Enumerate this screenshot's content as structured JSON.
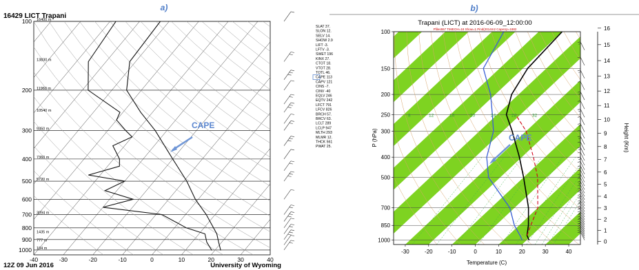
{
  "panel_a": {
    "label": "a)",
    "station_title": "16429 LICT Trapani",
    "footer_left": "12Z 09 Jun 2016",
    "footer_right": "University of Wyoming",
    "annotation": "CAPE",
    "height_labels": [
      {
        "p": 100,
        "text": "16400 m"
      },
      {
        "p": 150,
        "text": "13830 m"
      },
      {
        "p": 200,
        "text": "11960 m"
      },
      {
        "p": 250,
        "text": "10540 m"
      },
      {
        "p": 300,
        "text": "9350 m"
      },
      {
        "p": 400,
        "text": "7360 m"
      },
      {
        "p": 500,
        "text": "5720 m"
      },
      {
        "p": 700,
        "text": "3094 m"
      },
      {
        "p": 850,
        "text": "1435 m"
      },
      {
        "p": 925,
        "text": "777 m"
      },
      {
        "p": 1000,
        "text": "104 m"
      }
    ],
    "indices": [
      "SLAT 37.",
      "SLON 12.",
      "SELV 14.",
      "SHOW 2.9",
      "LIFT -3.",
      "LFTV -3.",
      "SWET 196",
      "KINX 27.",
      "CTOT 18.",
      "VTOT 28.",
      "TOTL 46.",
      "CAPE 113",
      "CAPV 121",
      "CINS -7.",
      "CINV -40",
      "EQLV 246",
      "EQTV 242",
      "LFCT 791",
      "LFCV 826",
      "BRCH 57.",
      "BRCV 63.",
      "LCLT 289",
      "LCLP 947",
      "MLTH 293",
      "MLMR 12.",
      "THCK 561",
      "PWAT 25."
    ]
  },
  "panel_b": {
    "label": "b)",
    "title": "Trapani (LICT) at 2016-06-09_12:00:00",
    "subtitle": "Pfiles557 TIMEOH=18 Show=1 Pind(2014m2 CapeUp=1882",
    "annotation": "CAPE",
    "xlabel": "Temperature (C)",
    "ylabel": "P (hPa)",
    "y2label": "Height (Km)",
    "mixing_ratio_labels": [
      "8",
      "12",
      "16",
      "20",
      "24",
      "28",
      "32"
    ]
  },
  "chart_data": [
    {
      "type": "line",
      "name": "skew-T sounding, University of Wyoming",
      "x_ticks": [
        -40,
        -30,
        -20,
        -10,
        0,
        10,
        20,
        30,
        40
      ],
      "y_ticks": [
        100,
        200,
        300,
        400,
        500,
        600,
        700,
        800,
        900,
        1000
      ],
      "xlim": [
        -40,
        40
      ],
      "ylim": [
        1050,
        100
      ],
      "y_scale": "log",
      "xlabel": "",
      "ylabel": "",
      "series": [
        {
          "values": [
            {
              "p": 1004,
              "t": 22
            },
            {
              "p": 925,
              "t": 19
            },
            {
              "p": 850,
              "t": 16
            },
            {
              "p": 700,
              "t": 7
            },
            {
              "p": 600,
              "t": -1
            },
            {
              "p": 500,
              "t": -9
            },
            {
              "p": 400,
              "t": -20
            },
            {
              "p": 300,
              "t": -34
            },
            {
              "p": 250,
              "t": -44
            },
            {
              "p": 200,
              "t": -55
            },
            {
              "p": 150,
              "t": -62
            },
            {
              "p": 100,
              "t": -63
            }
          ]
        },
        {
          "values": [
            {
              "p": 1004,
              "t": 19
            },
            {
              "p": 925,
              "t": 15
            },
            {
              "p": 850,
              "t": 12
            },
            {
              "p": 800,
              "t": 4
            },
            {
              "p": 700,
              "t": -8
            },
            {
              "p": 650,
              "t": -30
            },
            {
              "p": 600,
              "t": -22
            },
            {
              "p": 550,
              "t": -34
            },
            {
              "p": 500,
              "t": -30
            },
            {
              "p": 470,
              "t": -44
            },
            {
              "p": 430,
              "t": -36
            },
            {
              "p": 400,
              "t": -38
            },
            {
              "p": 350,
              "t": -44
            },
            {
              "p": 320,
              "t": -40
            },
            {
              "p": 300,
              "t": -44
            },
            {
              "p": 270,
              "t": -50
            },
            {
              "p": 250,
              "t": -51
            },
            {
              "p": 200,
              "t": -68
            },
            {
              "p": 150,
              "t": -76
            },
            {
              "p": 100,
              "t": -78
            }
          ]
        }
      ]
    },
    {
      "type": "line",
      "name": "skew-T model sounding, Trapani (LICT)",
      "x_ticks": [
        -30,
        -20,
        -10,
        0,
        10,
        20,
        30,
        40
      ],
      "y_ticks": [
        100,
        150,
        200,
        250,
        300,
        400,
        500,
        700,
        850,
        1000
      ],
      "xlim": [
        -35,
        45
      ],
      "ylim": [
        1050,
        100
      ],
      "y_scale": "log",
      "y2_ticks": [
        0,
        1,
        2,
        3,
        4,
        5,
        6,
        7,
        8,
        9,
        10,
        11,
        12,
        13,
        14,
        15,
        16
      ],
      "xlabel": "Temperature (C)",
      "ylabel": "P (hPa)",
      "series": [
        {
          "values": [
            {
              "p": 1000,
              "t": 21
            },
            {
              "p": 950,
              "t": 18
            },
            {
              "p": 850,
              "t": 14
            },
            {
              "p": 700,
              "t": 6
            },
            {
              "p": 500,
              "t": -10
            },
            {
              "p": 400,
              "t": -21
            },
            {
              "p": 300,
              "t": -36
            },
            {
              "p": 250,
              "t": -46
            },
            {
              "p": 200,
              "t": -53
            },
            {
              "p": 150,
              "t": -58
            },
            {
              "p": 100,
              "t": -60
            }
          ]
        },
        {
          "values": [
            {
              "p": 1000,
              "t": 18
            },
            {
              "p": 950,
              "t": 15
            },
            {
              "p": 850,
              "t": 8
            },
            {
              "p": 700,
              "t": -2
            },
            {
              "p": 500,
              "t": -25
            },
            {
              "p": 400,
              "t": -35
            },
            {
              "p": 300,
              "t": -44
            },
            {
              "p": 250,
              "t": -52
            },
            {
              "p": 200,
              "t": -62
            },
            {
              "p": 150,
              "t": -77
            },
            {
              "p": 100,
              "t": -85
            }
          ]
        },
        {
          "values": [
            {
              "p": 950,
              "t": 18
            },
            {
              "p": 850,
              "t": 15
            },
            {
              "p": 700,
              "t": 10
            },
            {
              "p": 500,
              "t": -4
            },
            {
              "p": 400,
              "t": -15
            },
            {
              "p": 300,
              "t": -30
            },
            {
              "p": 250,
              "t": -42
            }
          ]
        }
      ]
    }
  ]
}
